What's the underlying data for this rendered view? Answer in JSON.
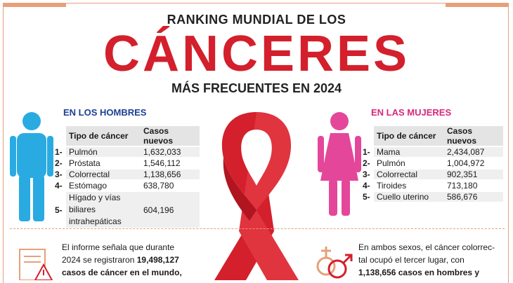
{
  "title_line1": "RANKING MUNDIAL DE LOS",
  "title_main": "CÁNCERES",
  "title_line3": "MÁS FRECUENTES EN 2024",
  "men": {
    "heading": "EN LOS HOMBRES",
    "col_type": "Tipo de cáncer",
    "col_cases": "Casos nuevos",
    "rows": [
      {
        "n": "1-",
        "type": "Pulmón",
        "cases": "1,632,033"
      },
      {
        "n": "2-",
        "type": "Próstata",
        "cases": "1,546,112"
      },
      {
        "n": "3-",
        "type": "Colorrectal",
        "cases": "1,138,656"
      },
      {
        "n": "4-",
        "type": "Estómago",
        "cases": "638,780"
      },
      {
        "n": "5-",
        "type_l1": "Hígado y vías",
        "type_l2": "biliares",
        "type_l3": "intrahepáticas",
        "cases": "604,196"
      }
    ]
  },
  "women": {
    "heading": "EN LAS MUJERES",
    "col_type": "Tipo de cáncer",
    "col_cases": "Casos nuevos",
    "rows": [
      {
        "n": "1-",
        "type": "Mama",
        "cases": "2,434,087"
      },
      {
        "n": "2-",
        "type": "Pulmón",
        "cases": "1,004,972"
      },
      {
        "n": "3-",
        "type": "Colorrectal",
        "cases": "902,351"
      },
      {
        "n": "4-",
        "type": "Tiroides",
        "cases": "713,180"
      },
      {
        "n": "5-",
        "type": "Cuello uterino",
        "cases": "586,676"
      }
    ]
  },
  "left_text": {
    "l1": "El informe señala que durante",
    "l2a": "2024 se registraron ",
    "l2b": "19,498,127",
    "l3": "casos de cáncer en el mundo,"
  },
  "right_text": {
    "l1": "En ambos sexos, el cáncer colorrec-",
    "l2": "tal ocupó el tercer lugar, con",
    "l3a": "1,138,656",
    "l3b": " casos en hombres y"
  },
  "colors": {
    "red": "#d3202c",
    "blue": "#29abe2",
    "pink": "#e4479a",
    "navy": "#1c3f95",
    "magenta": "#d6287e",
    "orange": "#e7a07a"
  }
}
